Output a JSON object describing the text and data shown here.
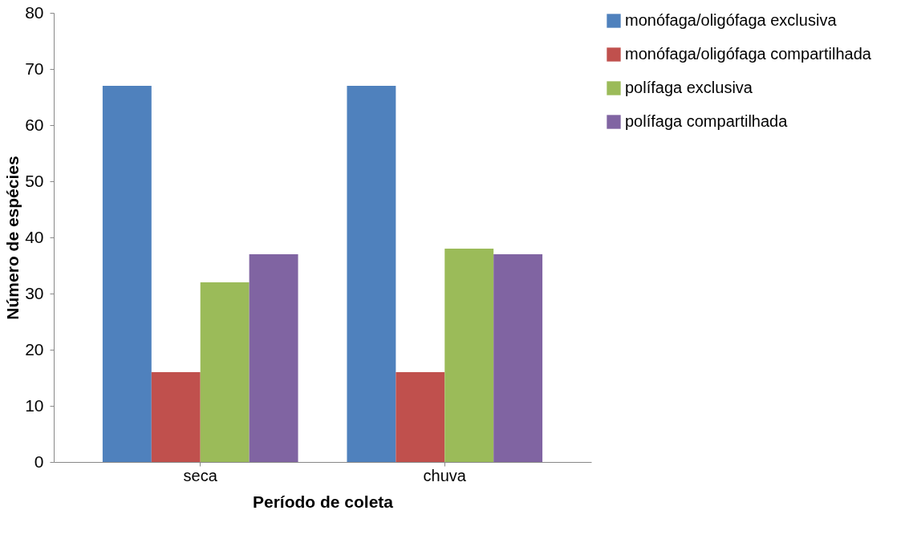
{
  "chart_data": {
    "type": "bar",
    "xlabel": "Período de coleta",
    "ylabel": "Número de espécies",
    "categories": [
      "seca",
      "chuva"
    ],
    "series": [
      {
        "name": "monófaga/oligófaga exclusiva",
        "color": "#4f81bd",
        "values": [
          67,
          67
        ]
      },
      {
        "name": "monófaga/oligófaga compartilhada",
        "color": "#c0504d",
        "values": [
          16,
          16
        ]
      },
      {
        "name": "polífaga exclusiva",
        "color": "#9bbb59",
        "values": [
          32,
          38
        ]
      },
      {
        "name": "polífaga compartilhada",
        "color": "#8064a2",
        "values": [
          37,
          37
        ]
      }
    ],
    "ylim": [
      0,
      80
    ],
    "yticks": [
      0,
      10,
      20,
      30,
      40,
      50,
      60,
      70,
      80
    ],
    "grid": false,
    "legend": "right"
  }
}
